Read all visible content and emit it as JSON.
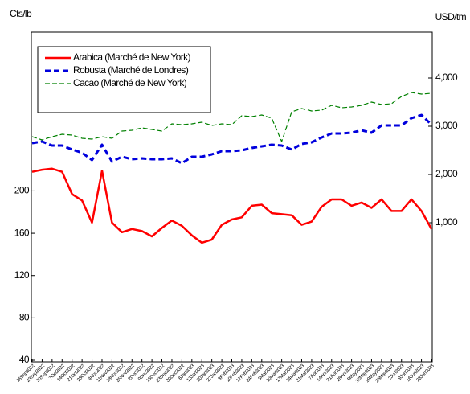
{
  "chart_data": {
    "type": "line",
    "y_axis_label": "Cts/lb",
    "y2_axis_label": "USD/tm",
    "categories": [
      "16Sep2022",
      "23Sep2022",
      "30Sep2022",
      "7Oct2022",
      "14Oct2022",
      "21Oct2022",
      "28Oct2022",
      "4Nov2022",
      "11Nov2022",
      "18Nov2022",
      "25Nov2022",
      "2Dec2022",
      "9Dec2022",
      "16Dec2022",
      "23Dec2022",
      "30Dec2022",
      "6Jan2023",
      "13Jan2023",
      "20Jan2023",
      "27Jan2023",
      "3Feb2023",
      "10Feb2023",
      "17Feb2023",
      "24Feb2023",
      "3Mar2023",
      "10Mar2023",
      "17Mar2023",
      "24Mar2023",
      "31Mar2023",
      "7Apr2023",
      "14Apr2023",
      "21Apr2023",
      "28Apr2023",
      "5May2023",
      "12May2023",
      "19May2023",
      "26May2023",
      "2Jun2023",
      "9Jun2023",
      "16Jun2023",
      "23Jun2023"
    ],
    "series": [
      {
        "name": "Arabica (Marché de New York)",
        "color": "#ff0000",
        "dash": "solid",
        "axis": "y",
        "values": [
          218,
          220,
          221,
          218,
          197,
          191,
          170,
          219,
          170,
          161,
          164,
          162,
          157,
          165,
          172,
          167,
          158,
          151,
          154,
          168,
          173,
          175,
          186,
          187,
          179,
          178,
          177,
          168,
          171,
          185,
          192,
          192,
          186,
          189,
          184,
          192,
          181,
          181,
          192,
          181,
          164
        ]
      },
      {
        "name": "Robusta (Marché de Londres)",
        "color": "#0000dd",
        "dash": "dashed",
        "axis": "y2",
        "values": [
          2650,
          2683,
          2600,
          2600,
          2517,
          2450,
          2300,
          2617,
          2267,
          2367,
          2317,
          2333,
          2317,
          2317,
          2333,
          2233,
          2367,
          2367,
          2417,
          2483,
          2483,
          2500,
          2550,
          2583,
          2617,
          2600,
          2517,
          2633,
          2667,
          2767,
          2850,
          2850,
          2867,
          2917,
          2867,
          3017,
          3017,
          3017,
          3167,
          3233,
          3033
        ]
      },
      {
        "name": "Cacao (Marché de New York)",
        "color": "#008000",
        "dash": "longdash",
        "axis": "y2",
        "values": [
          2783,
          2717,
          2783,
          2833,
          2817,
          2750,
          2733,
          2783,
          2750,
          2900,
          2917,
          2967,
          2933,
          2900,
          3050,
          3033,
          3050,
          3083,
          3017,
          3050,
          3033,
          3217,
          3200,
          3233,
          3167,
          2683,
          3300,
          3367,
          3317,
          3333,
          3433,
          3383,
          3400,
          3433,
          3500,
          3450,
          3467,
          3617,
          3700,
          3667,
          3683
        ]
      }
    ],
    "ylim": [
      38.5,
      350
    ],
    "yticks": [
      40,
      80,
      120,
      160,
      200
    ],
    "y2lim": [
      -1883,
      4950
    ],
    "y2ticks": [
      {
        "value": 1000,
        "label": "1,000"
      },
      {
        "value": 2000,
        "label": "2,000"
      },
      {
        "value": 3000,
        "label": "3,000"
      },
      {
        "value": 4000,
        "label": "4,000"
      }
    ],
    "legend": "top-left",
    "grid": false
  }
}
